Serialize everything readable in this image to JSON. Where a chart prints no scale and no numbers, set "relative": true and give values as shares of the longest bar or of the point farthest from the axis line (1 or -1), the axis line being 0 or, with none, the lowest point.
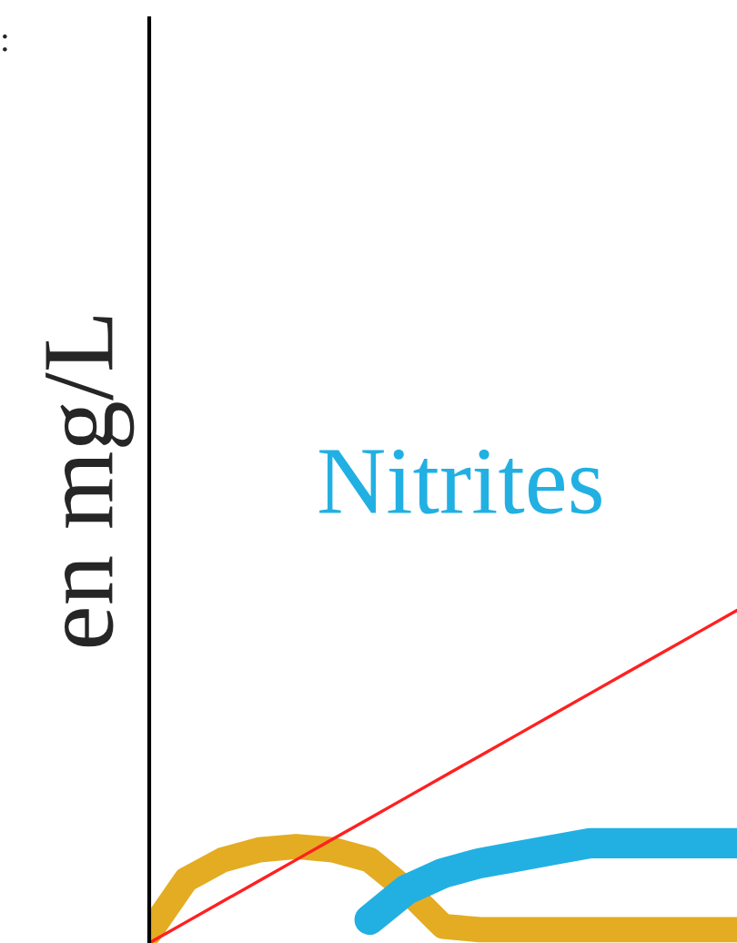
{
  "chart_data": {
    "type": "line",
    "relative": true,
    "ylabel": "en mg/L",
    "annotations": [
      ":"
    ],
    "categories": [
      null,
      null,
      null,
      null,
      null,
      null,
      null,
      null,
      null,
      null,
      null,
      null,
      null,
      null,
      null,
      null,
      null
    ],
    "series": [
      {
        "color": "#e3ac22",
        "values": [
          0.03,
          0.19,
          0.25,
          0.28,
          0.29,
          0.28,
          0.25,
          0.16,
          0.05,
          0.04,
          0.04,
          0.04,
          0.04,
          0.04,
          0.04,
          0.04,
          0.04
        ]
      },
      {
        "name": "Nitrites",
        "color": "#22b0e3",
        "values": [
          null,
          null,
          null,
          null,
          null,
          null,
          0.07,
          0.16,
          0.21,
          0.24,
          0.26,
          0.28,
          0.3,
          0.3,
          0.3,
          0.3,
          0.3
        ]
      },
      {
        "color": "#ff2020",
        "values": [
          0.0,
          0.0625,
          0.125,
          0.1875,
          0.25,
          0.3125,
          0.375,
          0.4375,
          0.5,
          0.5625,
          0.625,
          0.6875,
          0.75,
          0.8125,
          0.875,
          0.9375,
          1.0
        ]
      }
    ],
    "grid": false,
    "legend": false
  }
}
